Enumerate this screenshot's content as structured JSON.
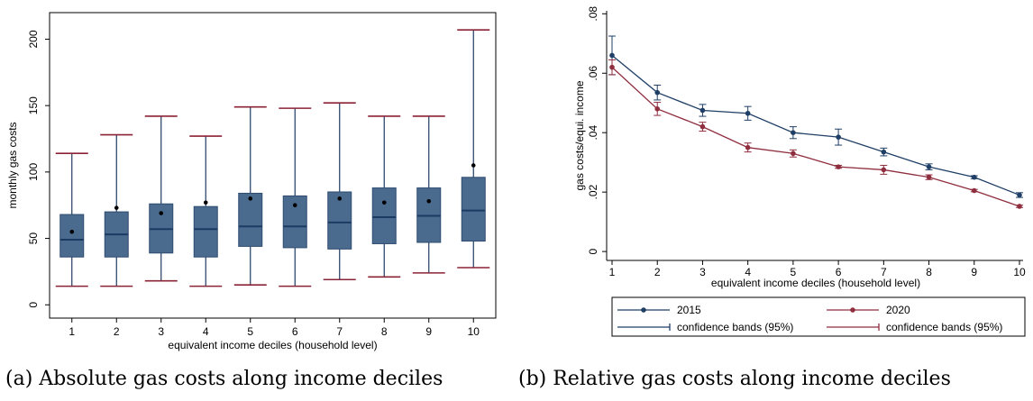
{
  "chart_data": [
    {
      "id": "a",
      "type": "box",
      "caption": "(a) Absolute gas costs along income deciles",
      "xlabel": "equivalent income deciles (household level)",
      "ylabel": "monthly gas costs",
      "categories": [
        "1",
        "2",
        "3",
        "4",
        "5",
        "6",
        "7",
        "8",
        "9",
        "10"
      ],
      "yticks": [
        "0",
        "50",
        "100",
        "150",
        "200"
      ],
      "ylim": [
        -10,
        220
      ],
      "boxes": [
        {
          "whisker_low": 14,
          "q1": 36,
          "median": 49,
          "q3": 68,
          "whisker_high": 114,
          "mean": 55
        },
        {
          "whisker_low": 14,
          "q1": 36,
          "median": 53,
          "q3": 70,
          "whisker_high": 128,
          "mean": 73
        },
        {
          "whisker_low": 18,
          "q1": 39,
          "median": 57,
          "q3": 76,
          "whisker_high": 142,
          "mean": 69
        },
        {
          "whisker_low": 14,
          "q1": 36,
          "median": 57,
          "q3": 74,
          "whisker_high": 127,
          "mean": 77
        },
        {
          "whisker_low": 15,
          "q1": 44,
          "median": 59,
          "q3": 84,
          "whisker_high": 149,
          "mean": 80
        },
        {
          "whisker_low": 14,
          "q1": 43,
          "median": 59,
          "q3": 82,
          "whisker_high": 148,
          "mean": 75
        },
        {
          "whisker_low": 19,
          "q1": 42,
          "median": 62,
          "q3": 85,
          "whisker_high": 152,
          "mean": 80
        },
        {
          "whisker_low": 21,
          "q1": 46,
          "median": 66,
          "q3": 88,
          "whisker_high": 142,
          "mean": 77
        },
        {
          "whisker_low": 24,
          "q1": 47,
          "median": 67,
          "q3": 88,
          "whisker_high": 142,
          "mean": 78
        },
        {
          "whisker_low": 28,
          "q1": 48,
          "median": 71,
          "q3": 96,
          "whisker_high": 207,
          "mean": 105
        }
      ],
      "colors": {
        "box": "#4a6a8e",
        "median": "#1d3a63",
        "cap": "#8b2336",
        "mean": "#000000"
      }
    },
    {
      "id": "b",
      "type": "line",
      "caption": "(b) Relative gas costs along income deciles",
      "xlabel": "equivalent income deciles (household level)",
      "ylabel": "gas costs/equi. income",
      "x": [
        1,
        2,
        3,
        4,
        5,
        6,
        7,
        8,
        9,
        10
      ],
      "yticks": [
        "0",
        ".02",
        ".04",
        ".06",
        ".08"
      ],
      "ylim": [
        -0.003,
        0.081
      ],
      "series": [
        {
          "name": "2015",
          "color": "#1f3f66",
          "values": [
            0.066,
            0.0535,
            0.0475,
            0.0465,
            0.04,
            0.0385,
            0.0335,
            0.0285,
            0.025,
            0.019
          ],
          "ci_low": [
            0.0595,
            0.051,
            0.0455,
            0.0442,
            0.038,
            0.0358,
            0.0322,
            0.0275,
            0.0245,
            0.0182
          ],
          "ci_high": [
            0.0725,
            0.056,
            0.0495,
            0.0488,
            0.042,
            0.0412,
            0.0348,
            0.0295,
            0.0255,
            0.0198
          ]
        },
        {
          "name": "2020",
          "color": "#8f2e3f",
          "values": [
            0.062,
            0.048,
            0.042,
            0.035,
            0.033,
            0.0285,
            0.0275,
            0.025,
            0.0205,
            0.0152
          ],
          "ci_low": [
            0.0595,
            0.0458,
            0.0405,
            0.0335,
            0.0318,
            0.028,
            0.026,
            0.0242,
            0.0201,
            0.0148
          ],
          "ci_high": [
            0.0645,
            0.0502,
            0.0435,
            0.0365,
            0.0342,
            0.029,
            0.029,
            0.0258,
            0.0209,
            0.0156
          ]
        }
      ],
      "legend": [
        "2015",
        "2020",
        "confidence bands (95%)",
        "confidence bands (95%)"
      ],
      "legend_position": "bottom"
    }
  ]
}
